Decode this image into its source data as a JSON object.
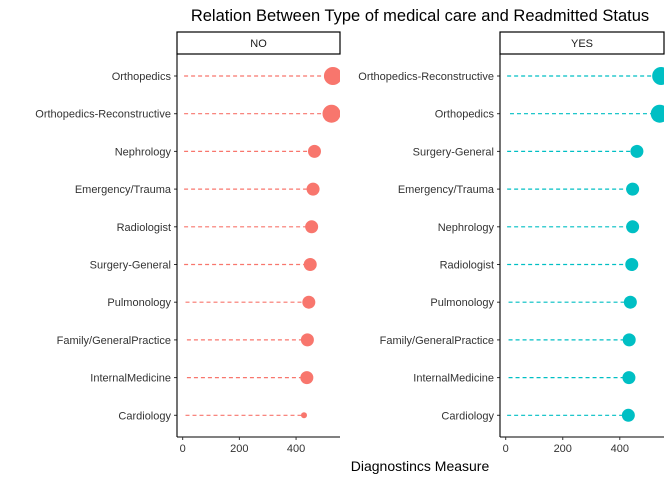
{
  "chart_data": {
    "type": "lollipop",
    "title": "Relation Between Type of medical care and Readmitted Status",
    "xlabel": "Diagnostincs Measure",
    "xlim": [
      -20,
      555
    ],
    "xticks": [
      0,
      200,
      400
    ],
    "grid": false,
    "panels": [
      {
        "name": "NO",
        "color": "#F8766D",
        "categories": [
          "Orthopedics",
          "Orthopedics-Reconstructive",
          "Nephrology",
          "Emergency/Trauma",
          "Radiologist",
          "Surgery-General",
          "Pulmonology",
          "Family/GeneralPractice",
          "InternalMedicine",
          "Cardiology"
        ],
        "start": [
          5,
          5,
          5,
          5,
          5,
          5,
          10,
          15,
          15,
          10
        ],
        "values": [
          530,
          525,
          465,
          460,
          455,
          450,
          445,
          440,
          438,
          428
        ],
        "sizes": [
          3,
          3,
          2,
          2,
          2,
          2,
          2,
          2,
          2,
          1
        ]
      },
      {
        "name": "YES",
        "color": "#00BFC4",
        "categories": [
          "Orthopedics-Reconstructive",
          "Orthopedics",
          "Surgery-General",
          "Emergency/Trauma",
          "Nephrology",
          "Radiologist",
          "Pulmonology",
          "Family/GeneralPractice",
          "InternalMedicine",
          "Cardiology"
        ],
        "start": [
          5,
          15,
          5,
          5,
          5,
          5,
          10,
          10,
          10,
          5
        ],
        "values": [
          545,
          540,
          460,
          445,
          445,
          442,
          437,
          433,
          432,
          430
        ],
        "sizes": [
          3,
          3,
          2,
          2,
          2,
          2,
          2,
          2,
          2,
          2
        ]
      }
    ]
  }
}
